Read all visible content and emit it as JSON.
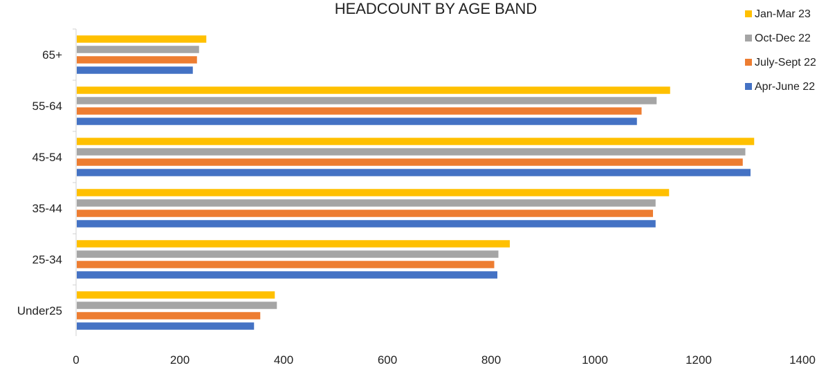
{
  "chart_data": {
    "type": "bar",
    "orientation": "horizontal",
    "title": "HEADCOUNT BY AGE BAND",
    "xlabel": "",
    "ylabel": "",
    "categories": [
      "Under25",
      "25-34",
      "35-44",
      "45-54",
      "55-64",
      "65+"
    ],
    "xlim": [
      0,
      1400
    ],
    "xticks": [
      "0",
      "200",
      "400",
      "600",
      "800",
      "1000",
      "1200",
      "1400"
    ],
    "grid": false,
    "legend_position": "top-right",
    "series": [
      {
        "name": "Apr-June 22",
        "color": "#4472C4",
        "values": [
          343,
          812,
          1117,
          1300,
          1081,
          225
        ]
      },
      {
        "name": "July-Sept 22",
        "color": "#ED7D31",
        "values": [
          355,
          806,
          1112,
          1285,
          1090,
          233
        ]
      },
      {
        "name": "Oct-Dec 22",
        "color": "#A5A5A5",
        "values": [
          387,
          814,
          1117,
          1290,
          1119,
          237
        ]
      },
      {
        "name": "Jan-Mar 23",
        "color": "#FFC000",
        "values": [
          383,
          836,
          1143,
          1307,
          1145,
          251
        ]
      }
    ],
    "legend_order": [
      "Jan-Mar 23",
      "Oct-Dec 22",
      "July-Sept 22",
      "Apr-June 22"
    ]
  }
}
